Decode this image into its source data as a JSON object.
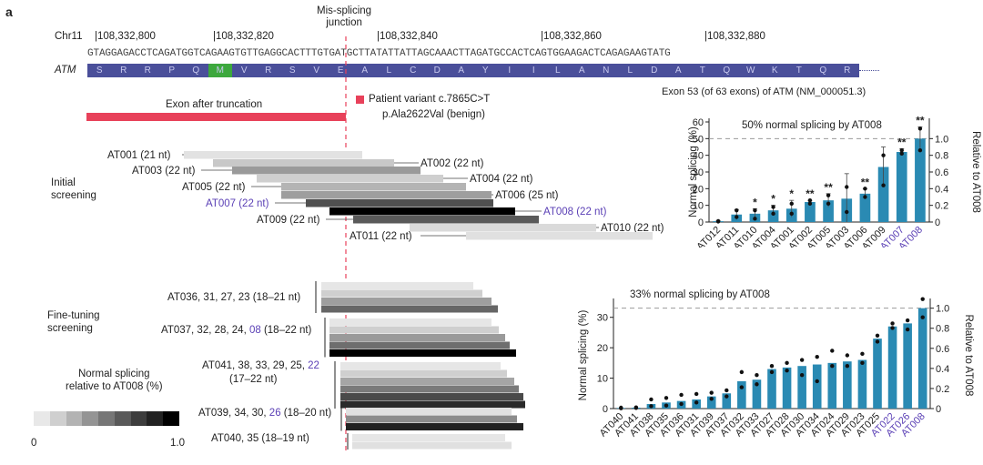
{
  "panel_letter": "a",
  "chr": "Chr11",
  "coords": [
    "108,332,800",
    "108,332,820",
    "108,332,840",
    "108,332,860",
    "108,332,880"
  ],
  "sequence": "GTAGGAGACCTCAGATGGTCAGAAGTGTTGAGGCACTTTGTGATGCTTATATTATTAGCAAACTTAGATGCCACTCAGTGGAAGACTCAGAGAAGTATG",
  "gene": "ATM",
  "aa": [
    "S",
    "R",
    "R",
    "P",
    "Q",
    "M",
    "V",
    "R",
    "S",
    "V",
    "E",
    "A",
    "L",
    "C",
    "D",
    "A",
    "Y",
    "I",
    "I",
    "L",
    "A",
    "N",
    "L",
    "D",
    "A",
    "T",
    "Q",
    "W",
    "K",
    "T",
    "Q",
    "R"
  ],
  "missplice": "Mis-splicing\njunction",
  "exon_note": "Exon 53 (of 63 exons) of ATM (NM_000051.3)",
  "exon_after": "Exon after truncation",
  "variant1": "Patient variant c.7865C>T",
  "variant2": "p.Ala2622Val (benign)",
  "initial_screening": "Initial\nscreening",
  "fine_tuning": "Fine-tuning\nscreening",
  "legend_title": "Normal splicing\nrelative to AT008 (%)",
  "legend_min": "0",
  "legend_max": "1.0",
  "legend_colors": [
    "#e8e8e8",
    "#cfcfcf",
    "#b3b3b3",
    "#949494",
    "#767676",
    "#595959",
    "#3d3d3d",
    "#222222",
    "#000000"
  ],
  "colors": {
    "accent_bar": "#2a8ab3",
    "highlight": "#5a3fb5",
    "exon": "#e8415a",
    "aa_box": "#4a4f9a",
    "aa_green": "#3da83d"
  },
  "initial_labels": [
    {
      "id": "AT001 (21 nt)",
      "side": "left",
      "hl": false
    },
    {
      "id": "AT002 (22 nt)",
      "side": "right",
      "hl": false
    },
    {
      "id": "AT003 (22 nt)",
      "side": "left",
      "hl": false
    },
    {
      "id": "AT004 (22 nt)",
      "side": "right",
      "hl": false
    },
    {
      "id": "AT005 (22 nt)",
      "side": "left",
      "hl": false
    },
    {
      "id": "AT006 (25 nt)",
      "side": "right",
      "hl": false
    },
    {
      "id": "AT007 (22 nt)",
      "side": "left",
      "hl": true
    },
    {
      "id": "AT008 (22 nt)",
      "side": "right",
      "hl": true
    },
    {
      "id": "AT009 (22 nt)",
      "side": "left",
      "hl": false
    },
    {
      "id": "AT010 (22 nt)",
      "side": "right",
      "hl": false
    },
    {
      "id": "AT011 (22 nt)",
      "side": "left",
      "hl": false
    }
  ],
  "fine_groups": [
    {
      "pre": "AT036, 31, 27, 23 (18–21 nt)",
      "hl": "",
      "post": ""
    },
    {
      "pre": "AT037, 32, 28, 24, ",
      "hl": "08",
      "post": " (18–22 nt)"
    },
    {
      "pre": "AT041, 38, 33, 29, 25, ",
      "hl": "22",
      "post": "",
      "line2": "(17–22 nt)"
    },
    {
      "pre": "AT039, 34, 30, ",
      "hl": "26",
      "post": " (18–20 nt)"
    },
    {
      "pre": "AT040, 35 (18–19 nt)",
      "hl": "",
      "post": ""
    }
  ],
  "chart_data": [
    {
      "type": "bar",
      "title": "50% normal splicing by AT008",
      "ylabel": "Normal splicing (%)",
      "y2label": "Relative to AT008",
      "ylim": [
        0,
        60
      ],
      "yticks": [
        0,
        10,
        20,
        30,
        40,
        50,
        60
      ],
      "y2ticks": [
        "0",
        "0.2",
        "0.4",
        "0.6",
        "0.8",
        "1.0"
      ],
      "reference": 50,
      "categories": [
        "AT012",
        "AT011",
        "AT010",
        "AT004",
        "AT001",
        "AT002",
        "AT005",
        "AT003",
        "AT006",
        "AT009",
        "AT007",
        "AT008"
      ],
      "highlight": [
        "AT007",
        "AT008"
      ],
      "values": [
        0.5,
        4.5,
        5,
        7,
        8,
        12,
        13,
        14,
        17,
        33,
        42,
        50
      ],
      "errors": [
        0.3,
        3,
        3,
        3,
        5,
        1,
        4,
        15,
        3,
        12,
        2,
        7
      ],
      "points": [
        [
          0.3,
          0.6
        ],
        [
          3,
          7
        ],
        [
          2,
          7
        ],
        [
          5,
          9
        ],
        [
          5,
          11
        ],
        [
          11,
          13
        ],
        [
          11,
          16
        ],
        [
          6,
          21
        ],
        [
          15,
          20
        ],
        [
          22,
          40
        ],
        [
          41,
          43
        ],
        [
          43,
          56
        ]
      ],
      "significance": [
        "",
        "",
        "*",
        "*",
        "*",
        "**",
        "**",
        "",
        "**",
        "",
        "**",
        "**"
      ]
    },
    {
      "type": "bar",
      "title": "33% normal splicing by AT008",
      "ylabel": "Normal splicing (%)",
      "y2label": "Relative to AT008",
      "ylim": [
        0,
        35
      ],
      "yticks": [
        0,
        10,
        20,
        30
      ],
      "y2ticks": [
        "0",
        "0.2",
        "0.4",
        "0.6",
        "0.8",
        "1.0"
      ],
      "reference": 33,
      "categories": [
        "AT040",
        "AT041",
        "AT038",
        "AT035",
        "AT036",
        "AT031",
        "AT039",
        "AT037",
        "AT032",
        "AT033",
        "AT027",
        "AT028",
        "AT030",
        "AT034",
        "AT024",
        "AT029",
        "AT023",
        "AT025",
        "AT022",
        "AT026",
        "AT008"
      ],
      "highlight": [
        "AT022",
        "AT026",
        "AT008"
      ],
      "values": [
        0.2,
        0.3,
        1.5,
        2,
        2.5,
        3,
        4,
        5,
        9,
        9.5,
        13,
        13.5,
        14,
        14.5,
        15,
        15.5,
        16,
        23,
        27,
        28,
        33
      ],
      "points": [
        [
          0.1,
          0.3
        ],
        [
          0.2,
          0.4
        ],
        [
          0.8,
          3
        ],
        [
          1,
          3.5
        ],
        [
          1.5,
          4.5
        ],
        [
          2,
          4.8
        ],
        [
          3.2,
          5.2
        ],
        [
          4,
          6
        ],
        [
          7,
          12
        ],
        [
          8,
          11
        ],
        [
          12,
          14
        ],
        [
          12.5,
          15
        ],
        [
          11,
          16
        ],
        [
          9,
          17
        ],
        [
          14,
          19
        ],
        [
          14,
          17.5
        ],
        [
          15,
          18
        ],
        [
          22,
          24
        ],
        [
          26.5,
          28
        ],
        [
          26,
          29
        ],
        [
          30,
          36
        ]
      ]
    }
  ]
}
